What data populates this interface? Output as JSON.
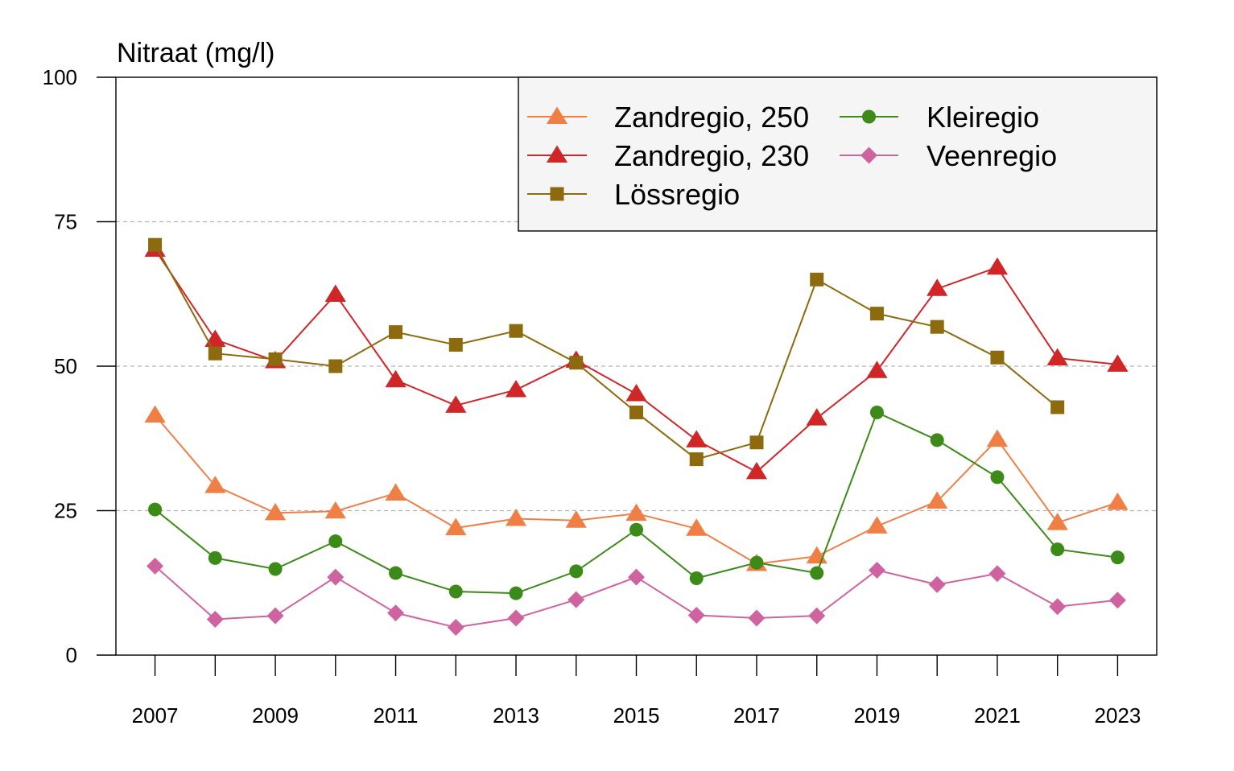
{
  "chart_data": {
    "type": "line",
    "ylabel": "Nitraat (mg/l)",
    "xlabel": "",
    "ylim": [
      0,
      100
    ],
    "xlim": [
      2006.35,
      2023.65
    ],
    "y_ticks": [
      0,
      25,
      50,
      75,
      100
    ],
    "x_ticks": [
      2007,
      2009,
      2011,
      2013,
      2015,
      2017,
      2019,
      2021,
      2023
    ],
    "x_minor_ticks": [
      2007,
      2008,
      2009,
      2010,
      2011,
      2012,
      2013,
      2014,
      2015,
      2016,
      2017,
      2018,
      2019,
      2020,
      2021,
      2022,
      2023
    ],
    "grid": "horizontal dashed at 25, 50, 75",
    "legend_position": "top-right",
    "x": [
      2007,
      2008,
      2009,
      2010,
      2011,
      2012,
      2013,
      2014,
      2015,
      2016,
      2017,
      2018,
      2019,
      2020,
      2021,
      2022,
      2023
    ],
    "series": [
      {
        "name": "Zandregio, 250",
        "color": "#f07f46",
        "marker": "triangle",
        "values": [
          41.5,
          29.3,
          24.6,
          24.9,
          28.0,
          22.0,
          23.6,
          23.3,
          24.5,
          21.9,
          15.8,
          17.1,
          22.3,
          26.6,
          37.3,
          22.9,
          26.4
        ]
      },
      {
        "name": "Zandregio, 230",
        "color": "#d12628",
        "marker": "triangle",
        "values": [
          70.2,
          54.6,
          50.9,
          62.4,
          47.6,
          43.2,
          45.9,
          51.0,
          45.2,
          37.2,
          31.7,
          41.0,
          49.2,
          63.4,
          67.1,
          51.4,
          50.3
        ]
      },
      {
        "name": "Lössregio",
        "color": "#8c6a0d",
        "marker": "square",
        "values": [
          71.0,
          52.2,
          51.2,
          50.0,
          55.9,
          53.7,
          56.1,
          50.6,
          42.0,
          33.9,
          36.8,
          65.0,
          59.1,
          56.8,
          51.5,
          42.9,
          null
        ]
      },
      {
        "name": "Kleiregio",
        "color": "#3c8a18",
        "marker": "circle",
        "values": [
          25.2,
          16.8,
          14.9,
          19.7,
          14.2,
          11.0,
          10.7,
          14.5,
          21.7,
          13.3,
          16.0,
          14.2,
          42.0,
          37.2,
          30.8,
          18.3,
          16.9
        ]
      },
      {
        "name": "Veenregio",
        "color": "#cf63a0",
        "marker": "diamond",
        "values": [
          15.4,
          6.2,
          6.8,
          13.5,
          7.3,
          4.8,
          6.4,
          9.6,
          13.5,
          6.9,
          6.4,
          6.8,
          14.7,
          12.2,
          14.1,
          8.4,
          9.5
        ]
      }
    ],
    "legend_order": [
      [
        "Zandregio, 250",
        "Zandregio, 230",
        "Lössregio"
      ],
      [
        "Kleiregio",
        "Veenregio"
      ]
    ],
    "colors": {
      "grid": "#b3b3b3",
      "legend_bg": "#f5f5f5",
      "axis": "#000000"
    }
  }
}
